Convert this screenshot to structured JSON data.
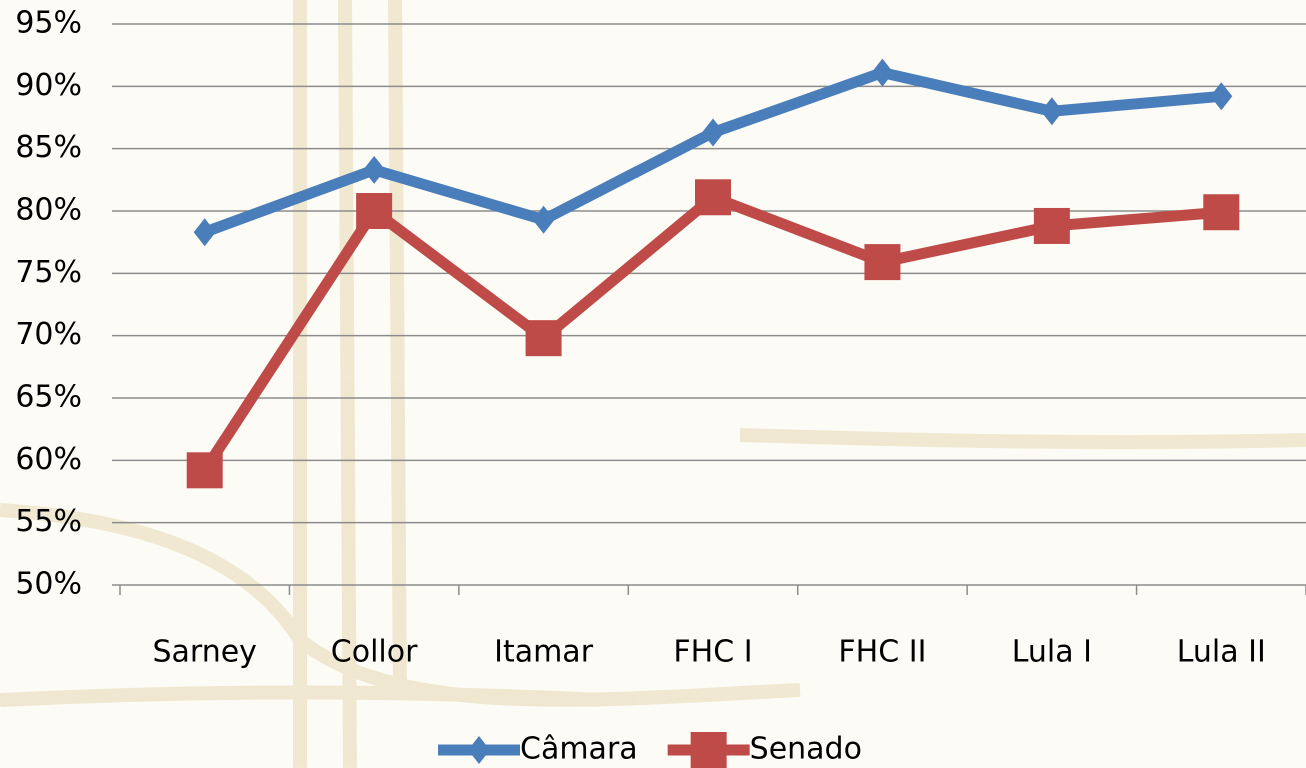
{
  "chart_data": {
    "type": "line",
    "categories": [
      "Sarney",
      "Collor",
      "Itamar",
      "FHC I",
      "FHC II",
      "Lula I",
      "Lula II"
    ],
    "series": [
      {
        "name": "Câmara",
        "color": "#4a7ebb",
        "marker": "diamond",
        "values": [
          78.3,
          83.3,
          79.3,
          86.3,
          91.1,
          88,
          89.2
        ]
      },
      {
        "name": "Senado",
        "color": "#be4b48",
        "marker": "square",
        "values": [
          59.2,
          80,
          69.8,
          81.1,
          75.9,
          78.8,
          79.9
        ]
      }
    ],
    "ylim": [
      50,
      95
    ],
    "yticks": [
      {
        "value": 50,
        "label": "50%"
      },
      {
        "value": 55,
        "label": "55%"
      },
      {
        "value": 60,
        "label": "60%"
      },
      {
        "value": 65,
        "label": "65%"
      },
      {
        "value": 70,
        "label": "70%"
      },
      {
        "value": 75,
        "label": "75%"
      },
      {
        "value": 80,
        "label": "80%"
      },
      {
        "value": 85,
        "label": "85%"
      },
      {
        "value": 90,
        "label": "90%"
      },
      {
        "value": 95,
        "label": "95%"
      }
    ],
    "grid": true,
    "legend": "bottom"
  }
}
